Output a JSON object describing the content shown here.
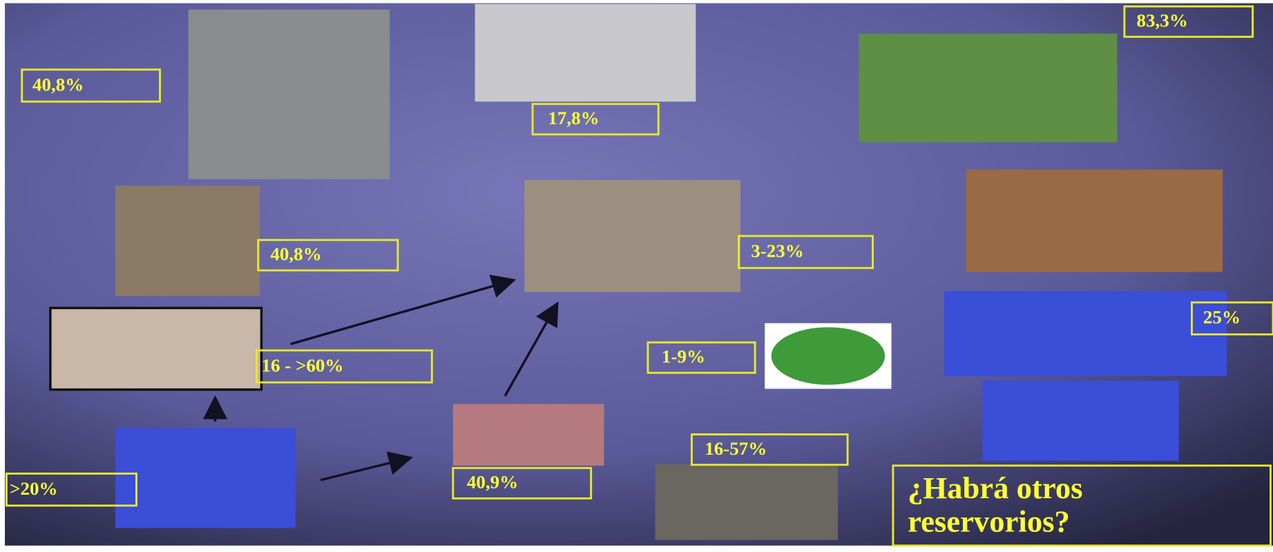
{
  "labels": [
    "40,8%",
    "17,8%",
    "83,3%",
    "40,8%",
    "3-23%",
    "16 - >60%",
    "1-9%",
    "25%",
    ">20%",
    "40,9%",
    "16-57%"
  ],
  "question": [
    "¿Habrá otros",
    "reservorios?"
  ]
}
